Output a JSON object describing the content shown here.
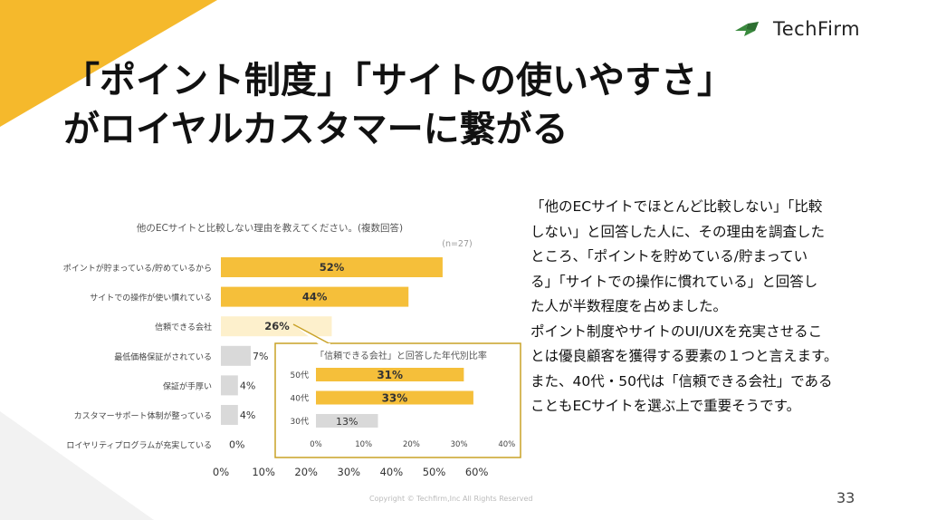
{
  "brand": {
    "name": "TechFirm",
    "accent": "#f5b92c",
    "green": "#3a8a3e"
  },
  "title_line1": "「ポイント制度」「サイトの使いやすさ」",
  "title_line2": "がロイヤルカスタマーに繋がる",
  "body": [
    "「他のECサイトでほとんど比較しない」「比較",
    "しない」と回答した人に、その理由を調査した",
    "ところ、「ポイントを貯めている/貯まってい",
    "る」「サイトでの操作に慣れている」と回答し",
    "た人が半数程度を占めました。",
    "ポイント制度やサイトのUI/UXを充実させるこ",
    "とは優良顧客を獲得する要素の１つと言えます。",
    "また、40代・50代は「信頼できる会社」である",
    "こともECサイトを選ぶ上で重要そうです。"
  ],
  "page_number": "33",
  "copyright": "Copyright © Techfirm,Inc All Rights Reserved",
  "chart_data": [
    {
      "type": "bar",
      "orientation": "horizontal",
      "title": "他のECサイトと比較しない理由を教えてください。(複数回答)",
      "note": "(n=27)",
      "categories": [
        "ポイントが貯まっている/貯めているから",
        "サイトでの操作が使い慣れている",
        "信頼できる会社",
        "最低価格保証がされている",
        "保証が手厚い",
        "カスタマーサポート体制が整っている",
        "ロイヤリティプログラムが充実している"
      ],
      "values": [
        52,
        44,
        26,
        7,
        4,
        4,
        0
      ],
      "labels": [
        "52%",
        "44%",
        "26%",
        "7%",
        "4%",
        "4%",
        "0%"
      ],
      "colors": [
        "#f5bf3a",
        "#f5bf3a",
        "#fdf0cc",
        "#d9d9d9",
        "#d9d9d9",
        "#d9d9d9",
        "#d9d9d9"
      ],
      "xlim": [
        0,
        60
      ],
      "xticks": [
        "0%",
        "10%",
        "20%",
        "30%",
        "40%",
        "50%",
        "60%"
      ]
    },
    {
      "type": "bar",
      "orientation": "horizontal",
      "title": "「信頼できる会社」と回答した年代別比率",
      "categories": [
        "50代",
        "40代",
        "30代"
      ],
      "values": [
        31,
        33,
        13
      ],
      "labels": [
        "31%",
        "33%",
        "13%"
      ],
      "colors": [
        "#f5bf3a",
        "#f5bf3a",
        "#d9d9d9"
      ],
      "xlim": [
        0,
        40
      ],
      "xticks": [
        "0%",
        "10%",
        "20%",
        "30%",
        "40%"
      ]
    }
  ]
}
